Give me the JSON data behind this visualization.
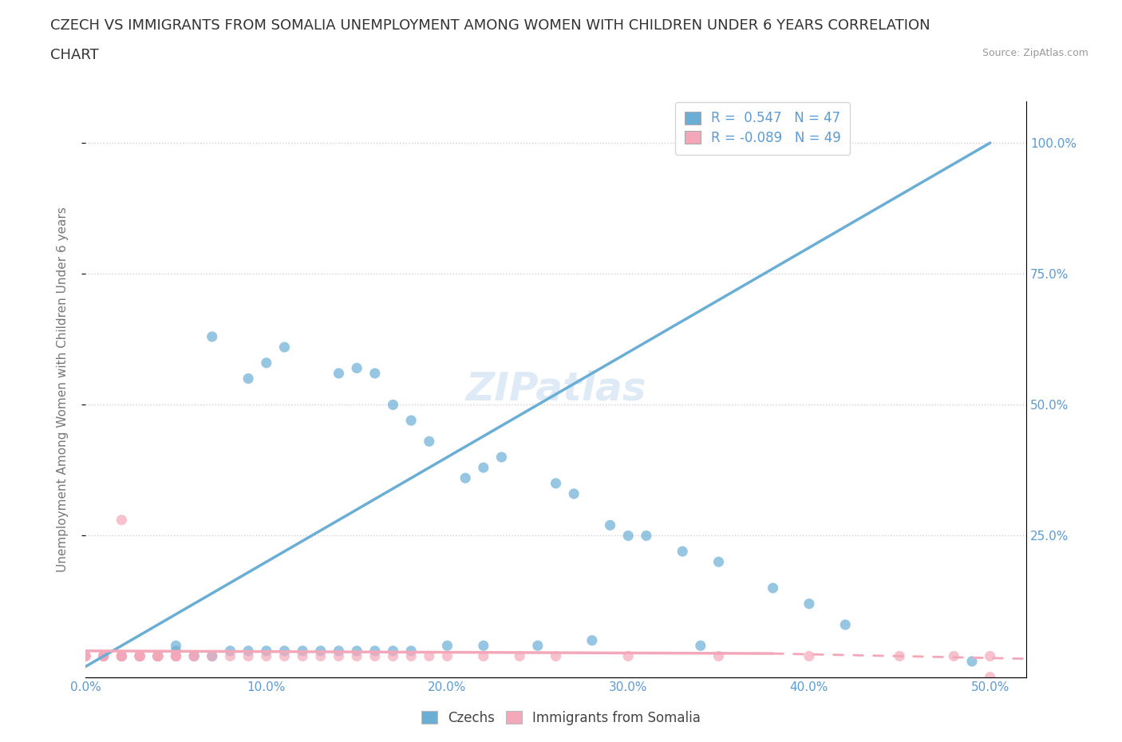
{
  "title_line1": "CZECH VS IMMIGRANTS FROM SOMALIA UNEMPLOYMENT AMONG WOMEN WITH CHILDREN UNDER 6 YEARS CORRELATION",
  "title_line2": "CHART",
  "source_text": "Source: ZipAtlas.com",
  "ylabel": "Unemployment Among Women with Children Under 6 years",
  "xlim": [
    0.0,
    0.52
  ],
  "ylim": [
    -0.02,
    1.08
  ],
  "xtick_labels": [
    "0.0%",
    "10.0%",
    "20.0%",
    "30.0%",
    "40.0%",
    "50.0%"
  ],
  "xtick_values": [
    0.0,
    0.1,
    0.2,
    0.3,
    0.4,
    0.5
  ],
  "ytick_labels": [
    "25.0%",
    "50.0%",
    "75.0%",
    "100.0%"
  ],
  "ytick_values": [
    0.25,
    0.5,
    0.75,
    1.0
  ],
  "czech_color": "#6aaed6",
  "somalia_color": "#f4a7b9",
  "czech_r": 0.547,
  "czech_n": 47,
  "somalia_r": -0.089,
  "somalia_n": 49,
  "watermark": "ZIPatlas",
  "legend_label_czech": "Czechs",
  "legend_label_somalia": "Immigrants from Somalia",
  "czech_scatter_x": [
    0.07,
    0.09,
    0.1,
    0.11,
    0.14,
    0.15,
    0.16,
    0.17,
    0.18,
    0.19,
    0.21,
    0.22,
    0.23,
    0.26,
    0.27,
    0.29,
    0.3,
    0.31,
    0.33,
    0.35,
    0.38,
    0.4,
    0.42,
    0.49,
    0.02,
    0.03,
    0.04,
    0.05,
    0.05,
    0.06,
    0.07,
    0.08,
    0.09,
    0.1,
    0.11,
    0.12,
    0.13,
    0.14,
    0.15,
    0.16,
    0.17,
    0.18,
    0.2,
    0.22,
    0.25,
    0.28,
    0.34
  ],
  "czech_scatter_y": [
    0.63,
    0.55,
    0.58,
    0.61,
    0.56,
    0.57,
    0.56,
    0.5,
    0.47,
    0.43,
    0.36,
    0.38,
    0.4,
    0.35,
    0.33,
    0.27,
    0.25,
    0.25,
    0.22,
    0.2,
    0.15,
    0.12,
    0.08,
    0.01,
    0.02,
    0.02,
    0.02,
    0.03,
    0.04,
    0.02,
    0.02,
    0.03,
    0.03,
    0.03,
    0.03,
    0.03,
    0.03,
    0.03,
    0.03,
    0.03,
    0.03,
    0.03,
    0.04,
    0.04,
    0.04,
    0.05,
    0.04
  ],
  "somalia_scatter_x": [
    0.0,
    0.0,
    0.0,
    0.01,
    0.01,
    0.01,
    0.01,
    0.02,
    0.02,
    0.02,
    0.02,
    0.03,
    0.03,
    0.03,
    0.03,
    0.04,
    0.04,
    0.04,
    0.04,
    0.04,
    0.05,
    0.05,
    0.05,
    0.06,
    0.06,
    0.07,
    0.08,
    0.09,
    0.1,
    0.11,
    0.12,
    0.13,
    0.14,
    0.15,
    0.16,
    0.17,
    0.18,
    0.19,
    0.2,
    0.22,
    0.24,
    0.26,
    0.3,
    0.35,
    0.4,
    0.45,
    0.48,
    0.5,
    0.5
  ],
  "somalia_scatter_y": [
    0.02,
    0.02,
    0.02,
    0.02,
    0.02,
    0.02,
    0.02,
    0.02,
    0.02,
    0.02,
    0.28,
    0.02,
    0.02,
    0.02,
    0.02,
    0.02,
    0.02,
    0.02,
    0.02,
    0.02,
    0.02,
    0.02,
    0.02,
    0.02,
    0.02,
    0.02,
    0.02,
    0.02,
    0.02,
    0.02,
    0.02,
    0.02,
    0.02,
    0.02,
    0.02,
    0.02,
    0.02,
    0.02,
    0.02,
    0.02,
    0.02,
    0.02,
    0.02,
    0.02,
    0.02,
    0.02,
    0.02,
    0.02,
    -0.02
  ],
  "czech_line_x": [
    0.0,
    0.5
  ],
  "czech_line_y": [
    0.0,
    1.0
  ],
  "somalia_line_x": [
    0.0,
    0.5
  ],
  "somalia_line_y": [
    0.03,
    0.01
  ],
  "title_fontsize": 13,
  "axis_label_fontsize": 11,
  "tick_fontsize": 11,
  "legend_fontsize": 12,
  "watermark_fontsize": 36,
  "background_color": "#ffffff",
  "grid_color": "#d0d0d0",
  "tick_color": "#5b9bd5"
}
